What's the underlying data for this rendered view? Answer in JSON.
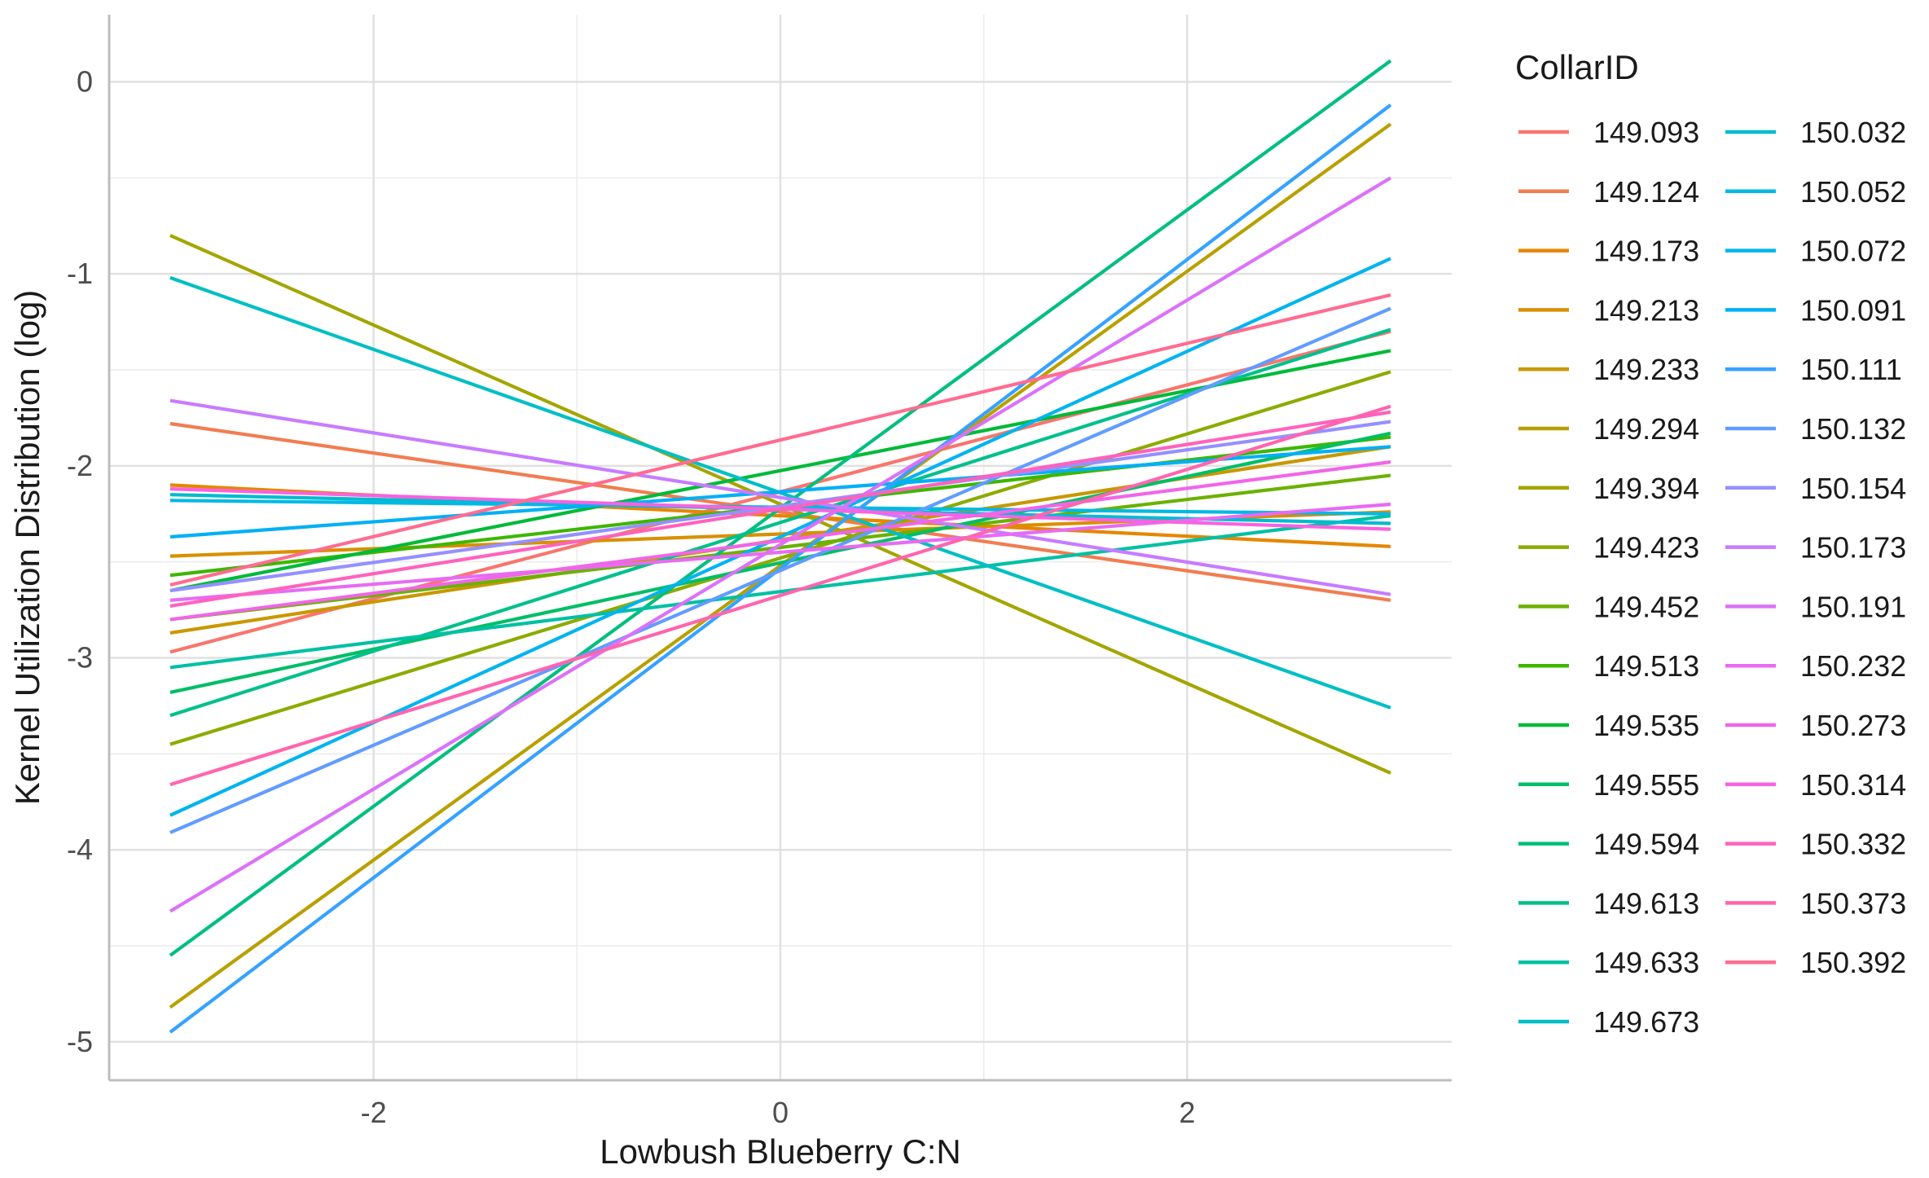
{
  "chart_data": {
    "type": "line",
    "xlabel": "Lowbush Blueberry C:N",
    "ylabel": "Kernel Utilization Distribution (log)",
    "xlim": [
      -3.3,
      3.3
    ],
    "ylim": [
      -5.2,
      0.35
    ],
    "xticks": [
      -2,
      0,
      2
    ],
    "yticks": [
      0,
      -1,
      -2,
      -3,
      -4,
      -5
    ],
    "xtick_labels": [
      "-2",
      "0",
      "2"
    ],
    "ytick_labels": [
      "0",
      "-1",
      "-2",
      "-3",
      "-4",
      "-5"
    ],
    "grid": true,
    "legend": {
      "title": "CollarID",
      "placement": "right",
      "columns": 2
    },
    "series": [
      {
        "name": "149.093",
        "color": "#F8766D",
        "x": [
          -3,
          3
        ],
        "y": [
          -2.97,
          -1.3
        ]
      },
      {
        "name": "149.124",
        "color": "#F17D51",
        "x": [
          -3,
          3
        ],
        "y": [
          -1.78,
          -2.7
        ]
      },
      {
        "name": "149.173",
        "color": "#E58700",
        "x": [
          -3,
          3
        ],
        "y": [
          -2.1,
          -2.42
        ]
      },
      {
        "name": "149.213",
        "color": "#D89000",
        "x": [
          -3,
          3
        ],
        "y": [
          -2.47,
          -2.24
        ]
      },
      {
        "name": "149.233",
        "color": "#C99800",
        "x": [
          -3,
          3
        ],
        "y": [
          -2.87,
          -1.9
        ]
      },
      {
        "name": "149.294",
        "color": "#B8A000",
        "x": [
          -3,
          3
        ],
        "y": [
          -4.82,
          -0.22
        ]
      },
      {
        "name": "149.394",
        "color": "#A3A500",
        "x": [
          -3,
          3
        ],
        "y": [
          -0.8,
          -3.6
        ]
      },
      {
        "name": "149.423",
        "color": "#8CAB00",
        "x": [
          -3,
          3
        ],
        "y": [
          -3.45,
          -1.51
        ]
      },
      {
        "name": "149.452",
        "color": "#6BB100",
        "x": [
          -3,
          3
        ],
        "y": [
          -2.8,
          -2.05
        ]
      },
      {
        "name": "149.513",
        "color": "#3DB700",
        "x": [
          -3,
          3
        ],
        "y": [
          -2.57,
          -1.85
        ]
      },
      {
        "name": "149.535",
        "color": "#00BA38",
        "x": [
          -3,
          3
        ],
        "y": [
          -2.65,
          -1.4
        ]
      },
      {
        "name": "149.555",
        "color": "#00BE67",
        "x": [
          -3,
          3
        ],
        "y": [
          -3.18,
          -1.83
        ]
      },
      {
        "name": "149.594",
        "color": "#00BF7D",
        "x": [
          -3,
          3
        ],
        "y": [
          -4.55,
          0.11
        ]
      },
      {
        "name": "149.613",
        "color": "#00C08B",
        "x": [
          -3,
          3
        ],
        "y": [
          -3.3,
          -1.29
        ]
      },
      {
        "name": "149.633",
        "color": "#00C0A4",
        "x": [
          -3,
          3
        ],
        "y": [
          -3.05,
          -2.26
        ]
      },
      {
        "name": "149.673",
        "color": "#00BFC4",
        "x": [
          -3,
          3
        ],
        "y": [
          -1.02,
          -3.26
        ]
      },
      {
        "name": "150.032",
        "color": "#00BCD1",
        "x": [
          -3,
          3
        ],
        "y": [
          -2.15,
          -2.3
        ]
      },
      {
        "name": "150.052",
        "color": "#00B9E3",
        "x": [
          -3,
          3
        ],
        "y": [
          -2.18,
          -2.25
        ]
      },
      {
        "name": "150.072",
        "color": "#00B4EF",
        "x": [
          -3,
          3
        ],
        "y": [
          -3.82,
          -0.92
        ]
      },
      {
        "name": "150.091",
        "color": "#00B0F6",
        "x": [
          -3,
          3
        ],
        "y": [
          -2.37,
          -1.9
        ]
      },
      {
        "name": "150.111",
        "color": "#35A2FF",
        "x": [
          -3,
          3
        ],
        "y": [
          -4.95,
          -0.12
        ]
      },
      {
        "name": "150.132",
        "color": "#619CFF",
        "x": [
          -3,
          3
        ],
        "y": [
          -3.91,
          -1.18
        ]
      },
      {
        "name": "150.154",
        "color": "#9590FF",
        "x": [
          -3,
          3
        ],
        "y": [
          -2.65,
          -1.77
        ]
      },
      {
        "name": "150.173",
        "color": "#C77CFF",
        "x": [
          -3,
          3
        ],
        "y": [
          -1.66,
          -2.67
        ]
      },
      {
        "name": "150.191",
        "color": "#DC71FA",
        "x": [
          -3,
          3
        ],
        "y": [
          -4.32,
          -0.5
        ]
      },
      {
        "name": "150.232",
        "color": "#E76BF3",
        "x": [
          -3,
          3
        ],
        "y": [
          -2.7,
          -2.2
        ]
      },
      {
        "name": "150.273",
        "color": "#F066E9",
        "x": [
          -3,
          3
        ],
        "y": [
          -2.8,
          -1.98
        ]
      },
      {
        "name": "150.314",
        "color": "#F763E0",
        "x": [
          -3,
          3
        ],
        "y": [
          -2.12,
          -2.33
        ]
      },
      {
        "name": "150.332",
        "color": "#FF62BC",
        "x": [
          -3,
          3
        ],
        "y": [
          -2.73,
          -1.72
        ]
      },
      {
        "name": "150.373",
        "color": "#FF65AE",
        "x": [
          -3,
          3
        ],
        "y": [
          -3.66,
          -1.69
        ]
      },
      {
        "name": "150.392",
        "color": "#FF6C91",
        "x": [
          -3,
          3
        ],
        "y": [
          -2.62,
          -1.11
        ]
      }
    ]
  }
}
